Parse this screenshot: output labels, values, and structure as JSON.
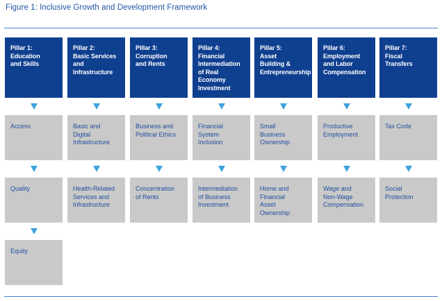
{
  "figure_title": "Figure 1: Inclusive Growth and Development Framework",
  "pillars": [
    {
      "title": "Pillar 1:\nEducation\nand Skills",
      "items": [
        "Access",
        "Quality",
        "Equity"
      ]
    },
    {
      "title": "Pillar 2:\nBasic Services\nand\nInfrastructure",
      "items": [
        "Basic and\nDigital\nInfrastructure",
        "Health-Related\nServices and\nInfrastructure"
      ]
    },
    {
      "title": "Pillar 3:\nCorruption\nand Rents",
      "items": [
        "Business and\nPolitical Ethics",
        "Concentration\nof Rents"
      ]
    },
    {
      "title": "Pillar 4:\nFinancial\nIntermediation\nof Real\nEconomy\nInvestment",
      "items": [
        "Financial\nSystem\nInclusion",
        "Intermediation\nof Business\nInvestment"
      ]
    },
    {
      "title": "Pillar 5:\nAsset\nBuilding &\nEntrepreneurship",
      "items": [
        "Small\nBusiness\nOwnership",
        "Home and\nFinancial\nAsset\nOwnership"
      ]
    },
    {
      "title": "Pillar 6:\nEmployment\nand Labor\nCompensation",
      "items": [
        "Productive\nEmployment",
        "Wage and\nNon-Wage\nCompensation"
      ]
    },
    {
      "title": "Pillar 7:\nFiscal\nTransfers",
      "items": [
        "Tax Code",
        "Social\nProtection"
      ]
    }
  ],
  "colors": {
    "pillar_bg": "#0f3f8f",
    "box_bg": "#c9c9c9",
    "box_text": "#1f4e9e",
    "arrow": "#3ea3dc",
    "title_text": "#1f55a4"
  }
}
